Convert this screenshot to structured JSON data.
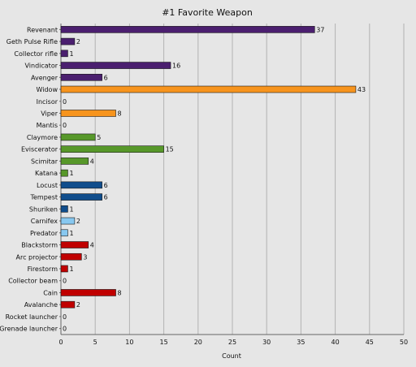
{
  "chart_data": {
    "type": "bar",
    "orientation": "horizontal",
    "title": "#1 Favorite Weapon",
    "xlabel": "Count",
    "ylabel": "",
    "xlim": [
      0,
      50
    ],
    "xticks": [
      0,
      5,
      10,
      15,
      20,
      25,
      30,
      35,
      40,
      45,
      50
    ],
    "grid": "vertical",
    "legend": "none",
    "categories": [
      "Revenant",
      "Geth Pulse Rifle",
      "Collector rifle",
      "Vindicator",
      "Avenger",
      "Widow",
      "Incisor",
      "Viper",
      "Mantis",
      "Claymore",
      "Eviscerator",
      "Scimitar",
      "Katana",
      "Locust",
      "Tempest",
      "Shuriken",
      "Carnifex",
      "Predator",
      "Blackstorm",
      "Arc projector",
      "Firestorm",
      "Collector beam",
      "Cain",
      "Avalanche",
      "Rocket launcher",
      "Grenade launcher"
    ],
    "values": [
      37,
      2,
      1,
      16,
      6,
      43,
      0,
      8,
      0,
      5,
      15,
      4,
      1,
      6,
      6,
      1,
      2,
      1,
      4,
      3,
      1,
      0,
      8,
      2,
      0,
      0
    ],
    "colors": [
      "#4b1f6f",
      "#4b1f6f",
      "#4b1f6f",
      "#4b1f6f",
      "#4b1f6f",
      "#f7941d",
      "#f7941d",
      "#f7941d",
      "#f7941d",
      "#57982a",
      "#57982a",
      "#57982a",
      "#57982a",
      "#104d8c",
      "#104d8c",
      "#104d8c",
      "#88c8f0",
      "#88c8f0",
      "#c00000",
      "#c00000",
      "#c00000",
      "#c00000",
      "#c00000",
      "#c00000",
      "#c00000",
      "#c00000"
    ]
  }
}
